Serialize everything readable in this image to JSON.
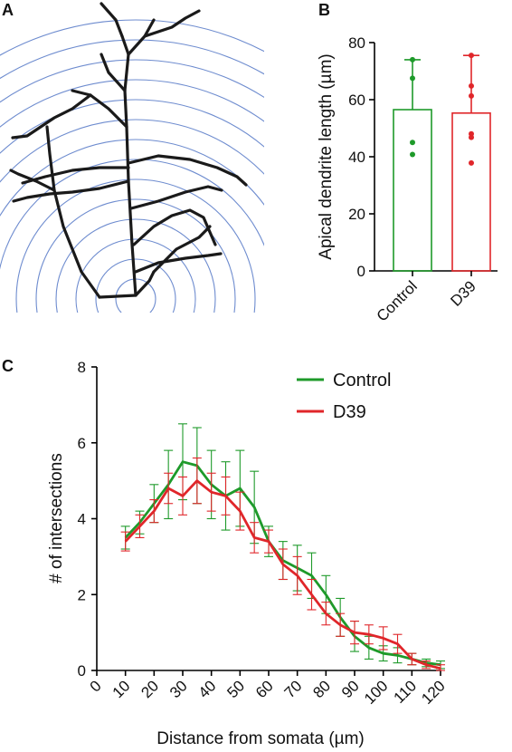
{
  "panels": {
    "a": {
      "letter": "A"
    },
    "b": {
      "letter": "B"
    },
    "c": {
      "letter": "C"
    }
  },
  "colors": {
    "control": "#1e9a2a",
    "d39": "#e0262a",
    "rings": "#6e8ccf",
    "dendrite": "#1a1a1a"
  },
  "chart_data": [
    {
      "type": "bar",
      "panel": "B",
      "title": "",
      "xlabel": "",
      "ylabel": "Apical dendrite length (µm)",
      "ylim": [
        0,
        80
      ],
      "yticks": [
        0,
        20,
        40,
        60,
        80
      ],
      "categories": [
        "Control",
        "D39"
      ],
      "values": [
        56.5,
        55.3
      ],
      "error_upper": [
        74,
        75.5
      ],
      "points": [
        [
          74,
          67.5,
          45,
          40.8
        ],
        [
          75.5,
          64.8,
          61.3,
          48,
          46.8,
          37.8
        ]
      ],
      "bar_style": "open"
    },
    {
      "type": "line",
      "panel": "C",
      "title": "",
      "xlabel": "Distance from somata (µm)",
      "ylabel": "# of intersections",
      "xlim": [
        0,
        120
      ],
      "ylim": [
        0,
        8
      ],
      "xticks": [
        0,
        10,
        20,
        30,
        40,
        50,
        60,
        70,
        80,
        90,
        100,
        110,
        120
      ],
      "yticks": [
        0,
        2,
        4,
        6,
        8
      ],
      "legend_position": "top-right",
      "x": [
        10,
        15,
        20,
        25,
        30,
        35,
        40,
        45,
        50,
        55,
        60,
        65,
        70,
        75,
        80,
        85,
        90,
        95,
        100,
        105,
        110,
        115,
        120
      ],
      "series": [
        {
          "name": "Control",
          "color": "#1e9a2a",
          "values": [
            3.5,
            3.9,
            4.4,
            4.9,
            5.5,
            5.4,
            4.9,
            4.6,
            4.8,
            4.3,
            3.4,
            2.9,
            2.7,
            2.5,
            2.0,
            1.4,
            0.9,
            0.6,
            0.45,
            0.4,
            0.3,
            0.2,
            0.15
          ],
          "errors": [
            0.3,
            0.3,
            0.5,
            0.9,
            1.0,
            1.0,
            0.9,
            0.9,
            1.0,
            0.95,
            0.4,
            0.5,
            0.6,
            0.6,
            0.5,
            0.5,
            0.4,
            0.3,
            0.2,
            0.2,
            0.15,
            0.1,
            0.1
          ]
        },
        {
          "name": "D39",
          "color": "#e0262a",
          "values": [
            3.4,
            3.8,
            4.2,
            4.8,
            4.6,
            5.0,
            4.7,
            4.6,
            4.2,
            3.5,
            3.4,
            2.8,
            2.5,
            2.0,
            1.5,
            1.2,
            1.0,
            0.95,
            0.85,
            0.7,
            0.3,
            0.15,
            0.05
          ],
          "errors": [
            0.25,
            0.3,
            0.3,
            0.4,
            0.5,
            0.6,
            0.5,
            0.5,
            0.5,
            0.4,
            0.3,
            0.4,
            0.5,
            0.4,
            0.3,
            0.3,
            0.3,
            0.25,
            0.3,
            0.25,
            0.15,
            0.1,
            0.1
          ]
        }
      ]
    }
  ]
}
